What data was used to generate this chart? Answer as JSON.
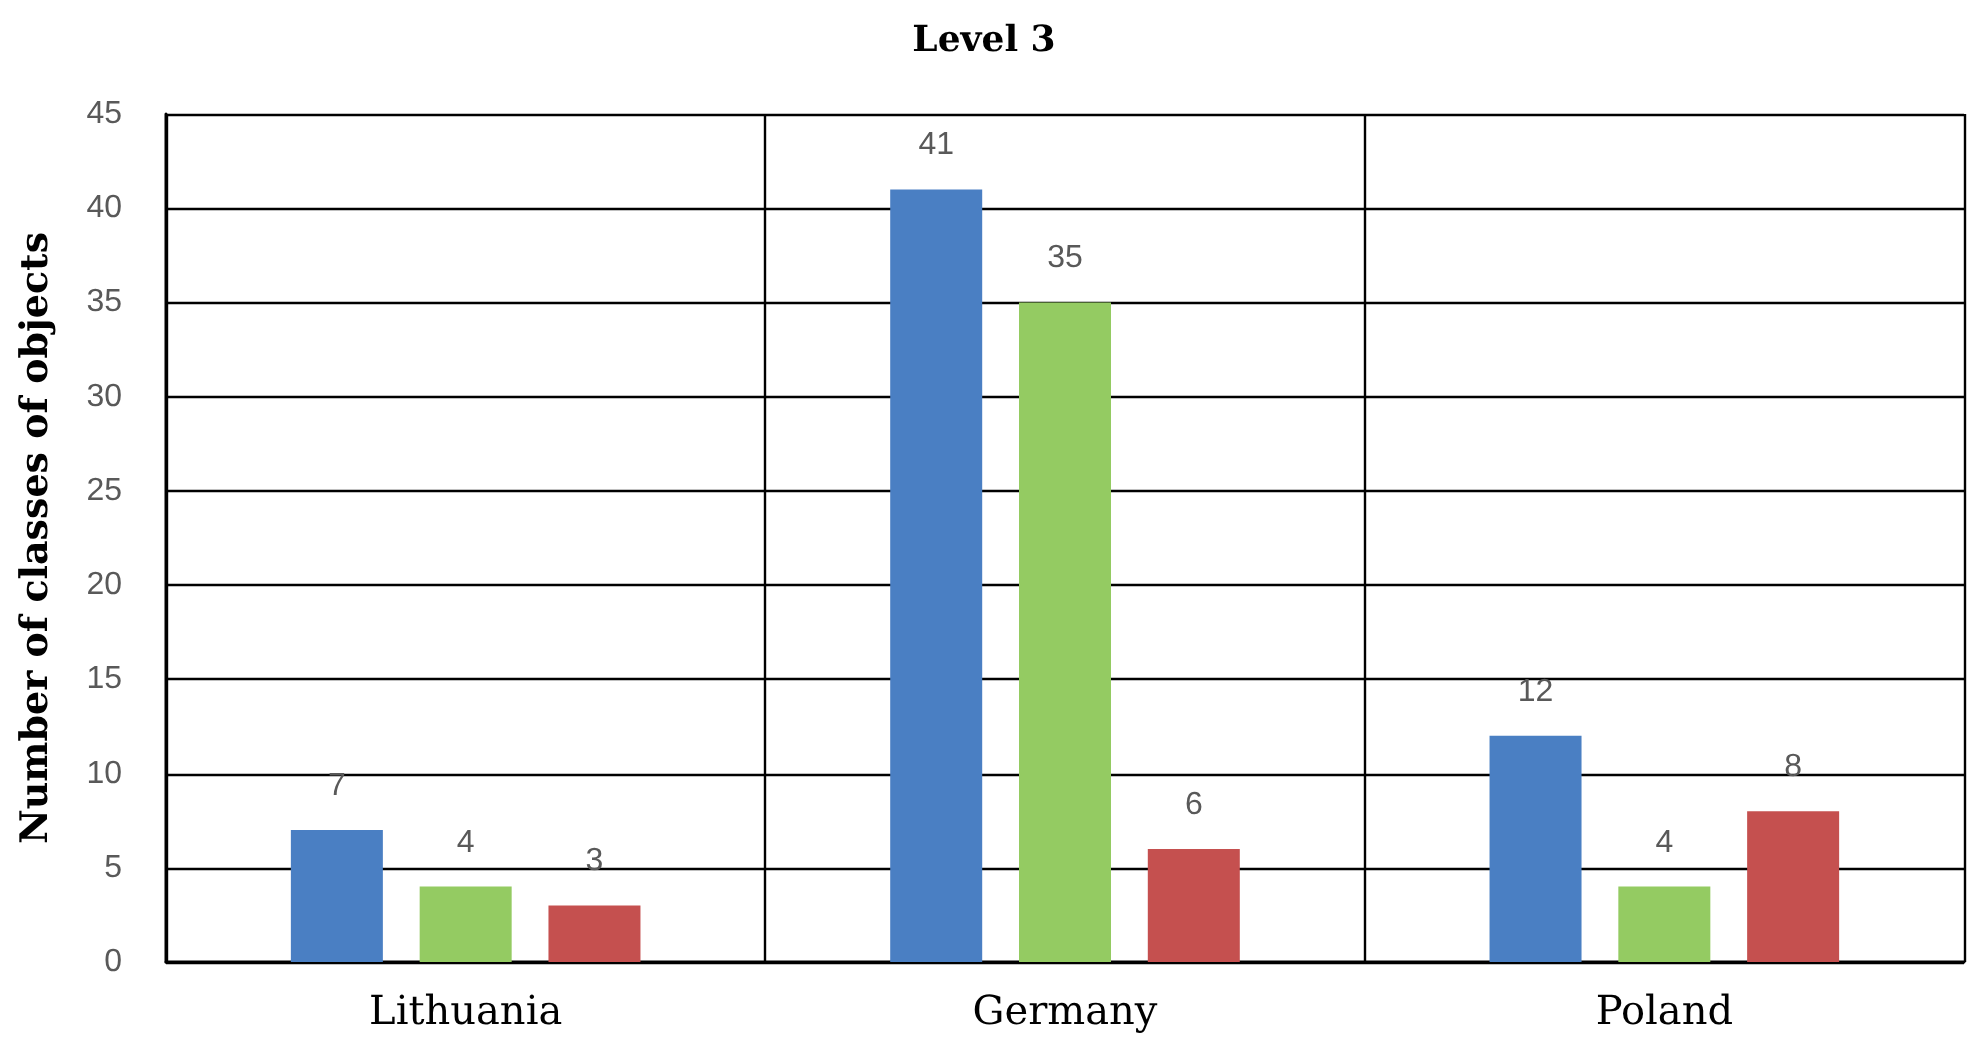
{
  "chart_data": {
    "type": "bar",
    "title": "Level 3",
    "ylabel": "Number of classes of objects",
    "categories": [
      "Lithuania",
      "Germany",
      "Poland"
    ],
    "series": [
      {
        "color": "#4a7fc3",
        "values": [
          7,
          41,
          12
        ]
      },
      {
        "color": "#94cb62",
        "values": [
          4,
          35,
          4
        ]
      },
      {
        "color": "#c5504f",
        "values": [
          3,
          6,
          8
        ]
      }
    ],
    "ylim": [
      0,
      45
    ],
    "yticks": [
      0,
      5,
      10,
      15,
      20,
      25,
      30,
      35,
      40,
      45
    ],
    "grid": true,
    "data_labels": true
  }
}
